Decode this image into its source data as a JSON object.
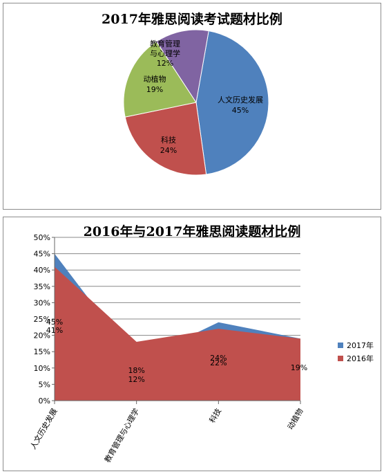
{
  "chart_data": [
    {
      "type": "pie",
      "title": "2017年雅思阅读考试题材比例",
      "slices": [
        {
          "label": "人文历史发展",
          "value": 45,
          "label_text": "45%",
          "color": "#4F81BD"
        },
        {
          "label": "科技",
          "value": 24,
          "label_text": "24%",
          "color": "#C0504D"
        },
        {
          "label": "动植物",
          "value": 19,
          "label_text": "19%",
          "color": "#9BBB59"
        },
        {
          "label": "教育管理与心理学",
          "value": 12,
          "label_text": "12%",
          "color": "#8064A2"
        }
      ]
    },
    {
      "type": "area",
      "title": "2016年与2017年雅思阅读题材比例",
      "categories": [
        "人文历史发展",
        "教育管理与心理学",
        "科技",
        "动植物"
      ],
      "series": [
        {
          "name": "2017年",
          "values": [
            45,
            12,
            24,
            19
          ],
          "color": "#4F81BD"
        },
        {
          "name": "2016年",
          "values": [
            41,
            18,
            22,
            19
          ],
          "color": "#C0504D"
        }
      ],
      "data_labels": [
        [
          "45%",
          "41%"
        ],
        [
          "18%",
          "12%"
        ],
        [
          "24%",
          "22%"
        ],
        [
          "19%"
        ]
      ],
      "yticks": [
        "0%",
        "5%",
        "10%",
        "15%",
        "20%",
        "25%",
        "30%",
        "35%",
        "40%",
        "45%",
        "50%"
      ],
      "ylim": [
        0,
        50
      ],
      "grid": true,
      "legend": "right"
    }
  ]
}
